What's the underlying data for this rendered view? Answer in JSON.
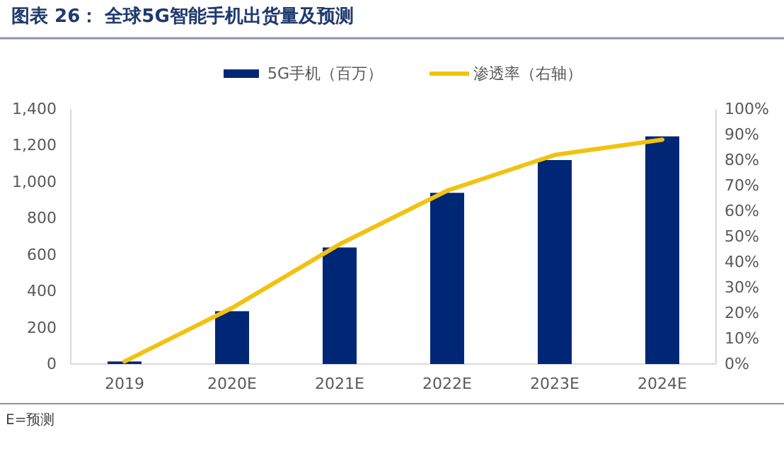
{
  "chart_data": {
    "type": "bar",
    "title": "图表 26：  全球5G智能手机出货量及预测",
    "categories": [
      "2019",
      "2020E",
      "2021E",
      "2022E",
      "2023E",
      "2024E"
    ],
    "series": [
      {
        "name": "5G手机（百万）",
        "color": "#002776",
        "values": [
          14,
          290,
          640,
          940,
          1120,
          1250
        ]
      },
      {
        "name": "渗透率（右轴）",
        "type": "line",
        "axis": "y2",
        "color": "#f2c20f",
        "values": [
          1,
          22,
          47,
          68,
          82,
          88
        ]
      }
    ],
    "ylim": [
      0,
      1400
    ],
    "yticks": [
      0,
      200,
      400,
      600,
      800,
      {
        "value": 1000,
        "label": "1,000"
      },
      {
        "value": 1200,
        "label": "1,200"
      },
      {
        "value": 1400,
        "label": "1,400"
      }
    ],
    "y2lim": [
      0,
      100
    ],
    "y2ticks": [
      {
        "value": 0,
        "label": "0%"
      },
      {
        "value": 10,
        "label": "10%"
      },
      {
        "value": 20,
        "label": "20%"
      },
      {
        "value": 30,
        "label": "30%"
      },
      {
        "value": 40,
        "label": "40%"
      },
      {
        "value": 50,
        "label": "50%"
      },
      {
        "value": 60,
        "label": "60%"
      },
      {
        "value": 70,
        "label": "70%"
      },
      {
        "value": 80,
        "label": "80%"
      },
      {
        "value": 90,
        "label": "90%"
      },
      {
        "value": 100,
        "label": "100%"
      }
    ],
    "legend": "top",
    "grid": false,
    "annotations": [
      "E=预测"
    ]
  }
}
